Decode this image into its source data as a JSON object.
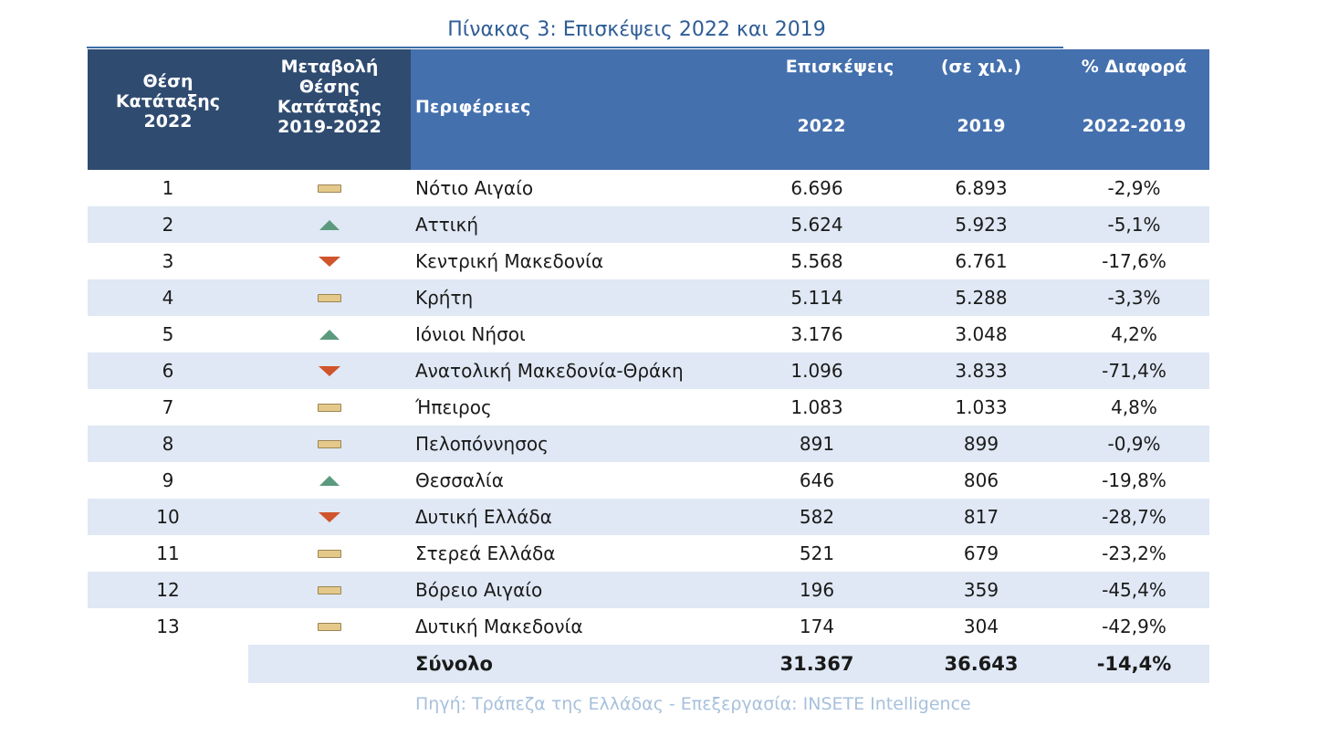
{
  "title": "Πίνακας 3: Επισκέψεις 2022 και 2019",
  "header": {
    "col_rank": [
      "Θέση",
      "Κατάταξης",
      "2022"
    ],
    "col_change": [
      "Μεταβολή",
      "Θέσης",
      "Κατάταξης",
      "2019-2022"
    ],
    "col_region": "Περιφέρειες",
    "col_visits": "Επισκέψεις",
    "col_units": "(σε χιλ.)",
    "col_diff": "% Διαφορά",
    "col_2022": "2022",
    "col_2019": "2019",
    "col_diff_years": "2022-2019"
  },
  "rows": [
    {
      "rank": "1",
      "change": "same",
      "region": "Νότιο Αιγαίο",
      "v2022": "6.696",
      "v2019": "6.893",
      "diff": "-2,9%"
    },
    {
      "rank": "2",
      "change": "up",
      "region": "Αττική",
      "v2022": "5.624",
      "v2019": "5.923",
      "diff": "-5,1%"
    },
    {
      "rank": "3",
      "change": "down",
      "region": "Κεντρική Μακεδονία",
      "v2022": "5.568",
      "v2019": "6.761",
      "diff": "-17,6%"
    },
    {
      "rank": "4",
      "change": "same",
      "region": "Κρήτη",
      "v2022": "5.114",
      "v2019": "5.288",
      "diff": "-3,3%"
    },
    {
      "rank": "5",
      "change": "up",
      "region": "Ιόνιοι Νήσοι",
      "v2022": "3.176",
      "v2019": "3.048",
      "diff": "4,2%"
    },
    {
      "rank": "6",
      "change": "down",
      "region": "Ανατολική Μακεδονία-Θράκη",
      "v2022": "1.096",
      "v2019": "3.833",
      "diff": "-71,4%"
    },
    {
      "rank": "7",
      "change": "same",
      "region": "Ήπειρος",
      "v2022": "1.083",
      "v2019": "1.033",
      "diff": "4,8%"
    },
    {
      "rank": "8",
      "change": "same",
      "region": "Πελοπόννησος",
      "v2022": "891",
      "v2019": "899",
      "diff": "-0,9%"
    },
    {
      "rank": "9",
      "change": "up",
      "region": "Θεσσαλία",
      "v2022": "646",
      "v2019": "806",
      "diff": "-19,8%"
    },
    {
      "rank": "10",
      "change": "down",
      "region": "Δυτική Ελλάδα",
      "v2022": "582",
      "v2019": "817",
      "diff": "-28,7%"
    },
    {
      "rank": "11",
      "change": "same",
      "region": "Στερεά Ελλάδα",
      "v2022": "521",
      "v2019": "679",
      "diff": "-23,2%"
    },
    {
      "rank": "12",
      "change": "same",
      "region": "Βόρειο Αιγαίο",
      "v2022": "196",
      "v2019": "359",
      "diff": "-45,4%"
    },
    {
      "rank": "13",
      "change": "same",
      "region": "Δυτική Μακεδονία",
      "v2022": "174",
      "v2019": "304",
      "diff": "-42,9%"
    }
  ],
  "total": {
    "label": "Σύνολο",
    "v2022": "31.367",
    "v2019": "36.643",
    "diff": "-14,4%"
  },
  "source": "Πηγή: Τράπεζα της Ελλάδας - Επεξεργασία: INSETE Intelligence",
  "colors": {
    "header_dark": "#2f4b70",
    "header_light": "#4470ad",
    "row_alt": "#dfe8f4",
    "up": "#5c9a7e",
    "down": "#d0542c",
    "same": "#e4c98a"
  }
}
